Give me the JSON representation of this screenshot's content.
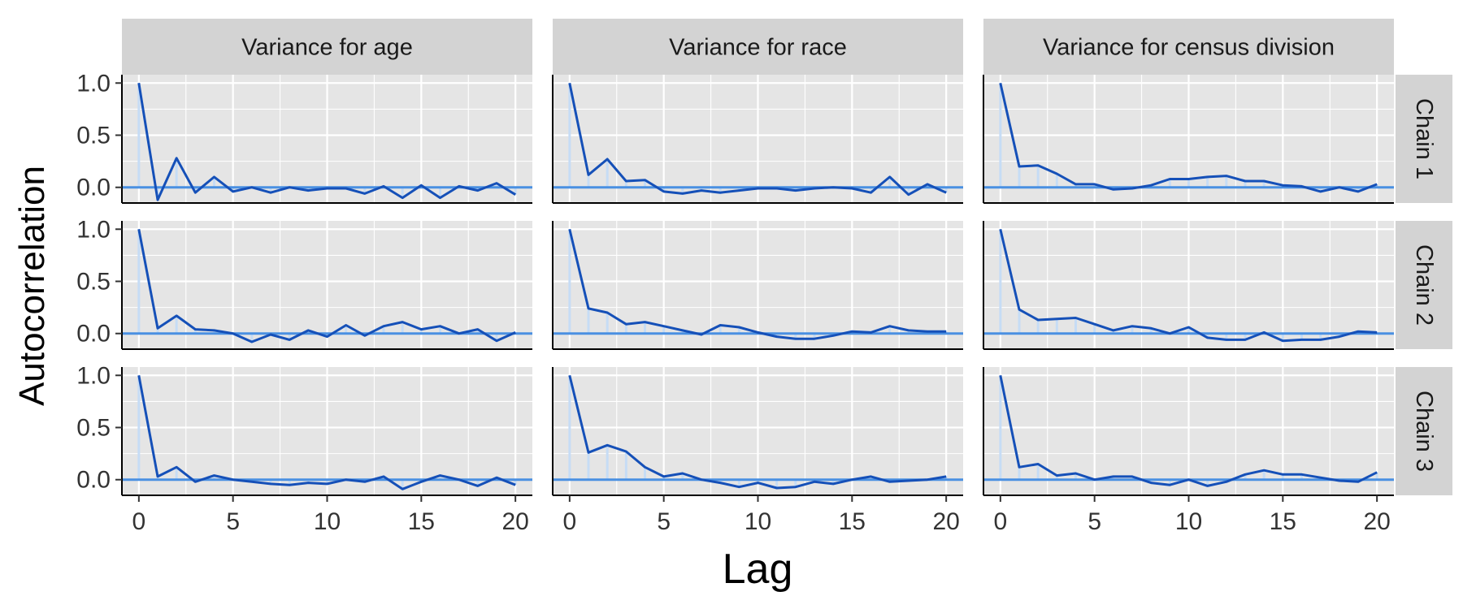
{
  "chart_data": {
    "type": "line",
    "xlabel": "Lag",
    "ylabel": "Autocorrelation",
    "xlim": [
      0,
      20
    ],
    "ylim": [
      -0.15,
      1.08
    ],
    "x_ticks": [
      0,
      5,
      10,
      15,
      20
    ],
    "y_ticks": [
      0.0,
      0.5,
      1.0
    ],
    "y_tick_labels": [
      "0.0",
      "0.5",
      "1.0"
    ],
    "x": [
      0,
      1,
      2,
      3,
      4,
      5,
      6,
      7,
      8,
      9,
      10,
      11,
      12,
      13,
      14,
      15,
      16,
      17,
      18,
      19,
      20
    ],
    "columns": [
      "Variance for age",
      "Variance for race",
      "Variance for census division"
    ],
    "rows": [
      "Chain 1",
      "Chain 2",
      "Chain 3"
    ],
    "grid": true,
    "colors": {
      "line": "#1550b8",
      "zero_line": "#4a90e2",
      "segment": "#c6dcf5",
      "panel": "#e5e5e5",
      "strip": "#d3d3d3"
    },
    "panels": [
      {
        "column": "Variance for age",
        "row": "Chain 1",
        "values": [
          1.0,
          -0.12,
          0.28,
          -0.05,
          0.1,
          -0.04,
          0.0,
          -0.05,
          0.0,
          -0.03,
          -0.01,
          -0.01,
          -0.06,
          0.01,
          -0.1,
          0.02,
          -0.1,
          0.01,
          -0.03,
          0.04,
          -0.07
        ]
      },
      {
        "column": "Variance for race",
        "row": "Chain 1",
        "values": [
          1.0,
          0.12,
          0.27,
          0.06,
          0.07,
          -0.04,
          -0.06,
          -0.03,
          -0.05,
          -0.03,
          -0.01,
          -0.01,
          -0.03,
          -0.01,
          0.0,
          -0.01,
          -0.05,
          0.1,
          -0.07,
          0.03,
          -0.05
        ]
      },
      {
        "column": "Variance for census division",
        "row": "Chain 1",
        "values": [
          1.0,
          0.2,
          0.21,
          0.13,
          0.03,
          0.03,
          -0.02,
          -0.01,
          0.02,
          0.08,
          0.08,
          0.1,
          0.11,
          0.06,
          0.06,
          0.02,
          0.01,
          -0.04,
          0.0,
          -0.04,
          0.03
        ]
      },
      {
        "column": "Variance for age",
        "row": "Chain 2",
        "values": [
          1.0,
          0.05,
          0.17,
          0.04,
          0.03,
          0.0,
          -0.08,
          -0.01,
          -0.06,
          0.03,
          -0.03,
          0.08,
          -0.02,
          0.07,
          0.11,
          0.04,
          0.07,
          0.0,
          0.04,
          -0.07,
          0.01
        ]
      },
      {
        "column": "Variance for race",
        "row": "Chain 2",
        "values": [
          1.0,
          0.24,
          0.2,
          0.09,
          0.11,
          0.07,
          0.03,
          -0.01,
          0.08,
          0.06,
          0.01,
          -0.03,
          -0.05,
          -0.05,
          -0.02,
          0.02,
          0.01,
          0.07,
          0.03,
          0.02,
          0.02
        ]
      },
      {
        "column": "Variance for census division",
        "row": "Chain 2",
        "values": [
          1.0,
          0.23,
          0.13,
          0.14,
          0.15,
          0.09,
          0.03,
          0.07,
          0.05,
          0.0,
          0.06,
          -0.04,
          -0.06,
          -0.06,
          0.01,
          -0.07,
          -0.06,
          -0.06,
          -0.03,
          0.02,
          0.01
        ]
      },
      {
        "column": "Variance for age",
        "row": "Chain 3",
        "values": [
          1.0,
          0.03,
          0.12,
          -0.02,
          0.04,
          0.0,
          -0.02,
          -0.04,
          -0.05,
          -0.03,
          -0.04,
          0.0,
          -0.02,
          0.03,
          -0.09,
          -0.02,
          0.04,
          0.0,
          -0.06,
          0.02,
          -0.05
        ]
      },
      {
        "column": "Variance for race",
        "row": "Chain 3",
        "values": [
          1.0,
          0.26,
          0.33,
          0.27,
          0.12,
          0.03,
          0.06,
          0.0,
          -0.03,
          -0.07,
          -0.03,
          -0.08,
          -0.07,
          -0.02,
          -0.04,
          0.0,
          0.03,
          -0.02,
          -0.01,
          0.0,
          0.03
        ]
      },
      {
        "column": "Variance for census division",
        "row": "Chain 3",
        "values": [
          1.0,
          0.12,
          0.15,
          0.04,
          0.06,
          0.0,
          0.03,
          0.03,
          -0.03,
          -0.05,
          0.0,
          -0.06,
          -0.02,
          0.05,
          0.09,
          0.05,
          0.05,
          0.02,
          -0.01,
          -0.02,
          0.07
        ]
      }
    ]
  }
}
